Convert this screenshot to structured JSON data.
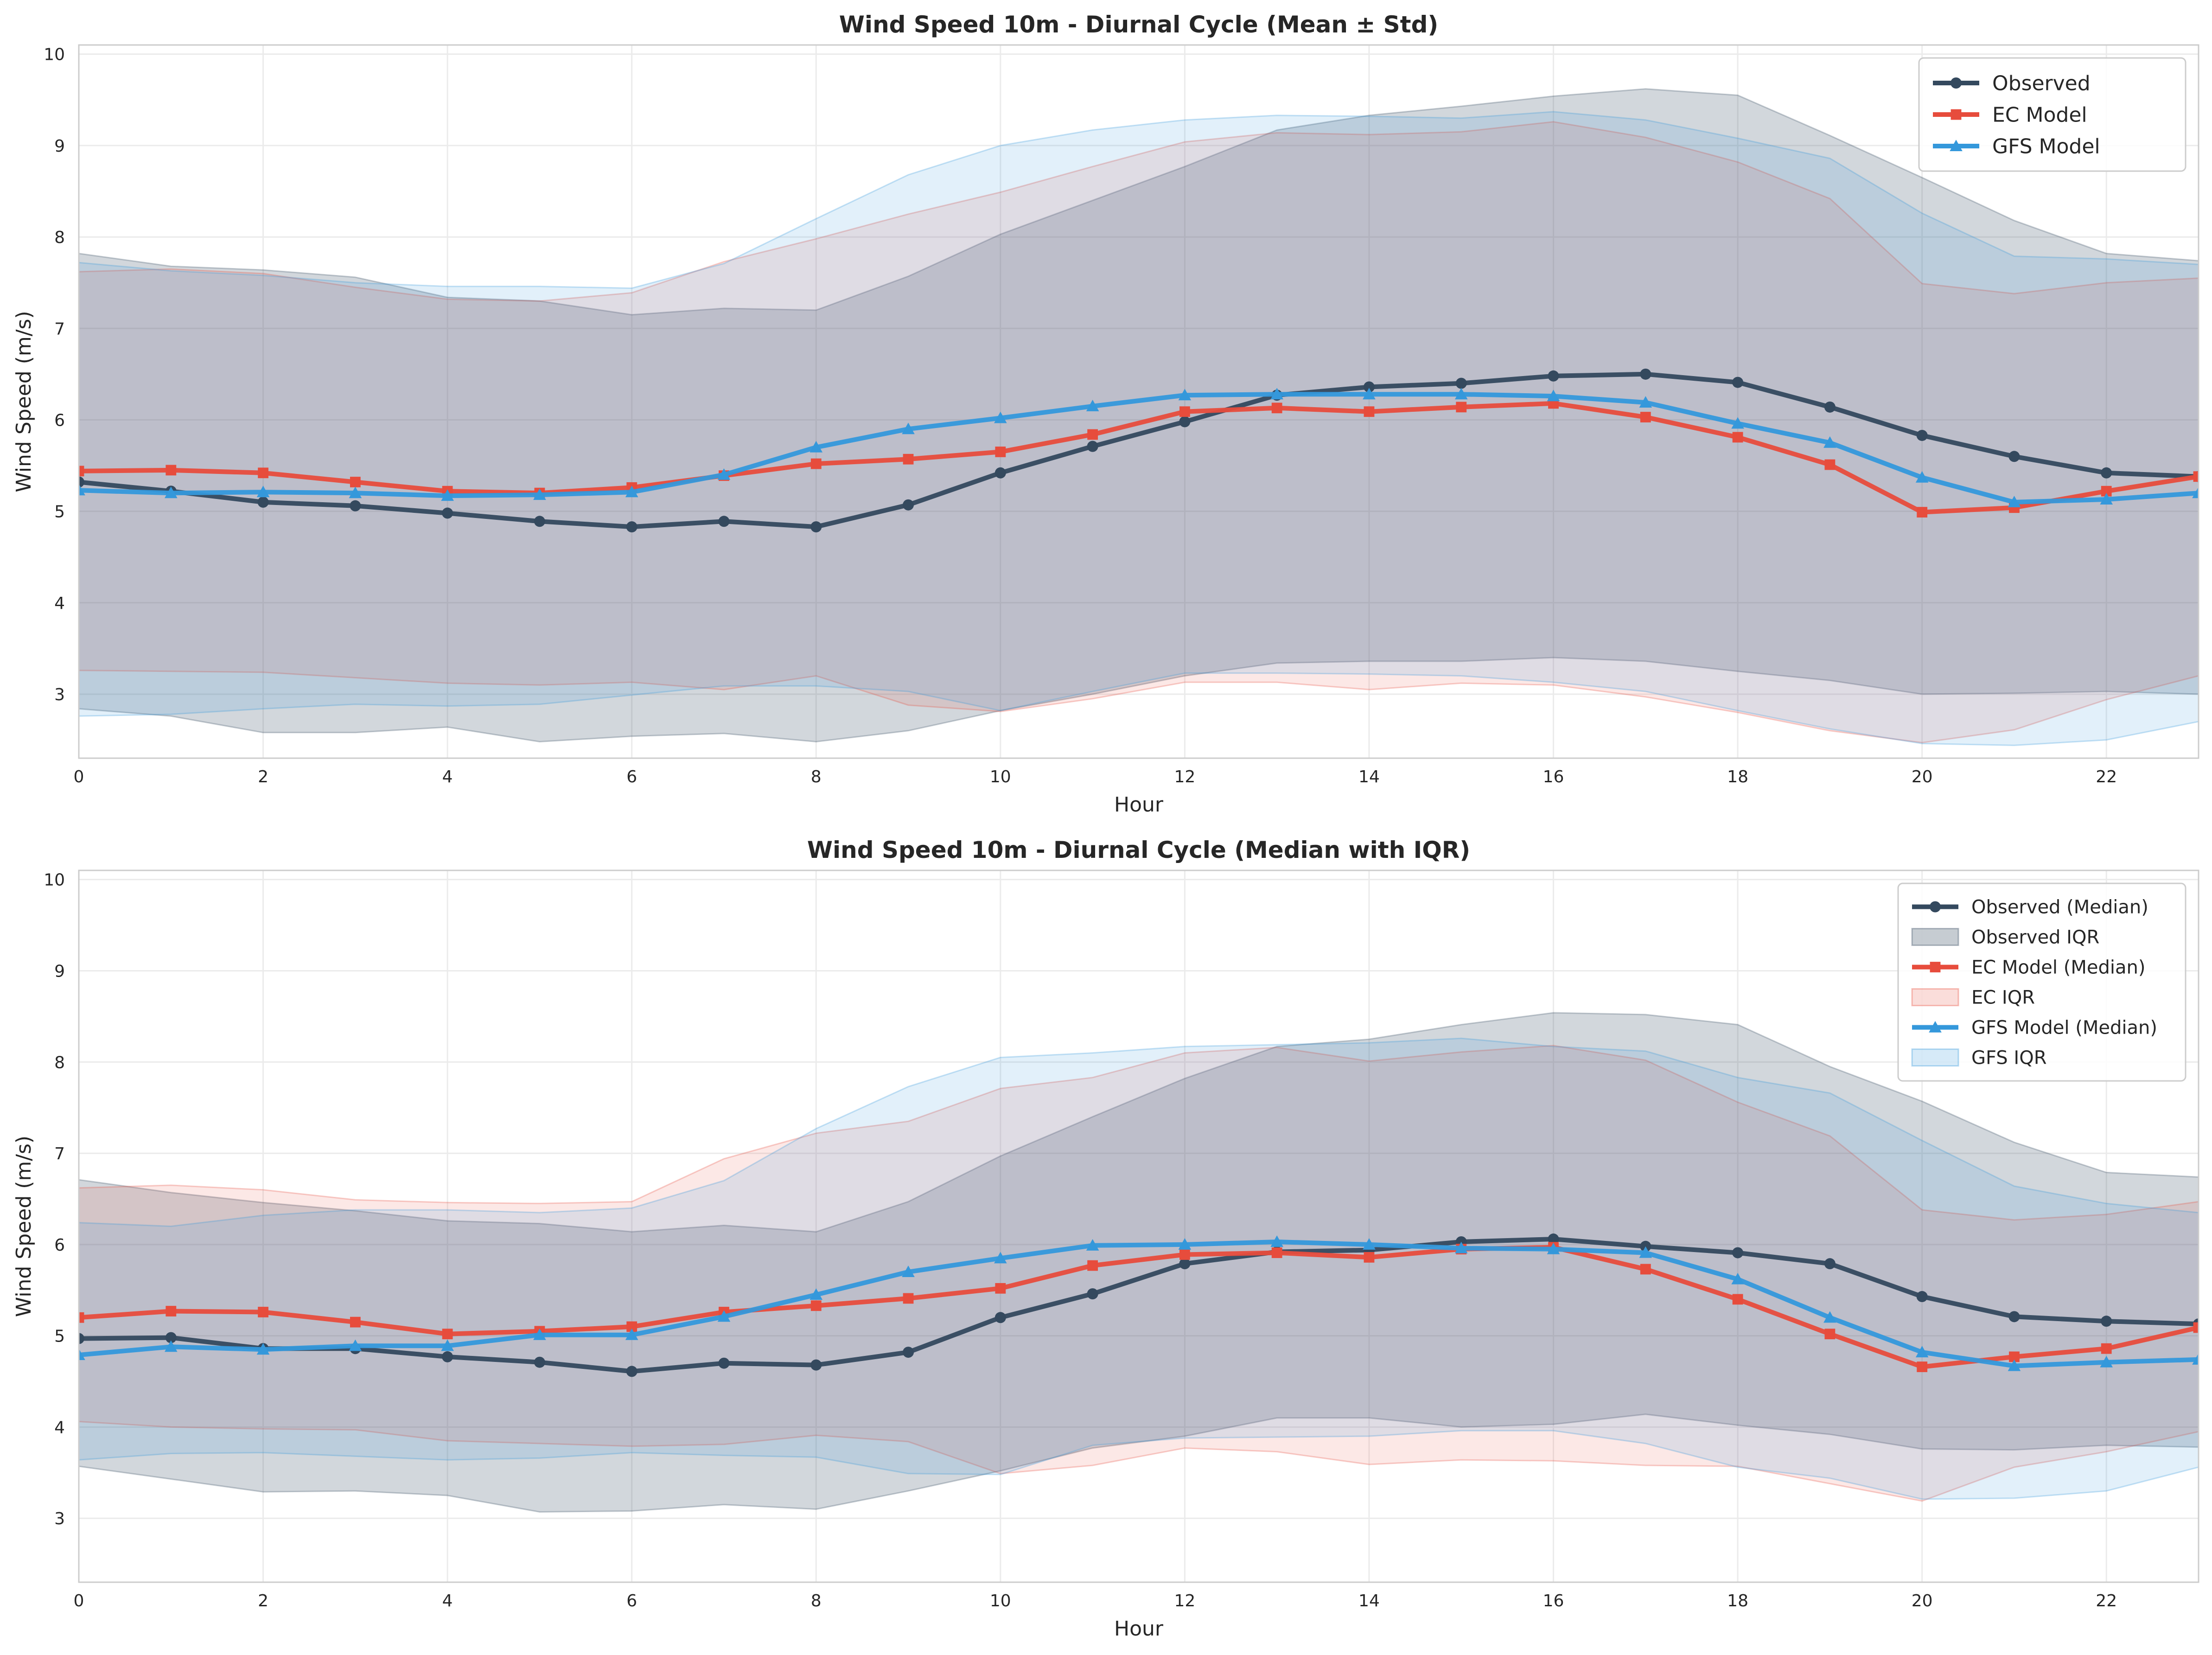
{
  "chart_data": [
    {
      "type": "line",
      "title": "Wind Speed 10m - Diurnal Cycle (Mean ± Std)",
      "xlabel": "Hour",
      "ylabel": "Wind Speed (m/s)",
      "xlim": [
        0,
        23
      ],
      "ylim": [
        2.3,
        10.1
      ],
      "xticks": [
        "0",
        "2",
        "4",
        "6",
        "8",
        "10",
        "12",
        "14",
        "16",
        "18",
        "20",
        "22"
      ],
      "yticks": [
        "3",
        "4",
        "5",
        "6",
        "7",
        "8",
        "9",
        "10"
      ],
      "grid": true,
      "legend_position": "top-right",
      "legend": [
        "Observed",
        "EC Model",
        "GFS Model"
      ],
      "x": [
        0,
        1,
        2,
        3,
        4,
        5,
        6,
        7,
        8,
        9,
        10,
        11,
        12,
        13,
        14,
        15,
        16,
        17,
        18,
        19,
        20,
        21,
        22,
        23
      ],
      "series": [
        {
          "name": "Observed",
          "color": "#34495e",
          "marker": "circle",
          "values": [
            5.32,
            5.22,
            5.1,
            5.06,
            4.98,
            4.89,
            4.83,
            4.89,
            4.83,
            5.07,
            5.42,
            5.71,
            5.98,
            6.27,
            6.36,
            6.4,
            6.48,
            6.5,
            6.41,
            6.14,
            5.83,
            5.6,
            5.42,
            5.38
          ],
          "band_low": [
            2.84,
            2.76,
            2.58,
            2.58,
            2.64,
            2.48,
            2.54,
            2.57,
            2.48,
            2.6,
            2.82,
            3.0,
            3.2,
            3.34,
            3.36,
            3.36,
            3.4,
            3.36,
            3.25,
            3.15,
            3.0,
            3.01,
            3.03,
            3.0
          ],
          "band_high": [
            7.82,
            7.68,
            7.64,
            7.56,
            7.34,
            7.3,
            7.15,
            7.22,
            7.2,
            7.57,
            8.03,
            8.4,
            8.77,
            9.17,
            9.33,
            9.43,
            9.54,
            9.62,
            9.55,
            9.11,
            8.65,
            8.18,
            7.82,
            7.74
          ]
        },
        {
          "name": "EC Model",
          "color": "#e74c3c",
          "marker": "square",
          "values": [
            5.44,
            5.45,
            5.42,
            5.32,
            5.22,
            5.2,
            5.26,
            5.39,
            5.52,
            5.57,
            5.65,
            5.84,
            6.09,
            6.13,
            6.09,
            6.14,
            6.18,
            6.03,
            5.81,
            5.51,
            4.99,
            5.04,
            5.22,
            5.38
          ],
          "band_low": [
            3.26,
            3.25,
            3.24,
            3.18,
            3.12,
            3.1,
            3.13,
            3.05,
            3.2,
            2.88,
            2.81,
            2.95,
            3.13,
            3.13,
            3.05,
            3.12,
            3.1,
            2.97,
            2.8,
            2.6,
            2.47,
            2.61,
            2.94,
            3.2
          ],
          "band_high": [
            7.62,
            7.65,
            7.6,
            7.45,
            7.32,
            7.3,
            7.39,
            7.73,
            7.98,
            8.25,
            8.49,
            8.77,
            9.04,
            9.14,
            9.12,
            9.15,
            9.26,
            9.09,
            8.82,
            8.42,
            7.49,
            7.38,
            7.5,
            7.55
          ]
        },
        {
          "name": "GFS Model",
          "color": "#3498db",
          "marker": "triangle",
          "values": [
            5.23,
            5.2,
            5.21,
            5.2,
            5.17,
            5.18,
            5.21,
            5.4,
            5.7,
            5.9,
            6.02,
            6.15,
            6.27,
            6.28,
            6.28,
            6.28,
            6.26,
            6.19,
            5.96,
            5.75,
            5.37,
            5.1,
            5.13,
            5.2
          ],
          "band_low": [
            2.76,
            2.78,
            2.84,
            2.89,
            2.87,
            2.89,
            2.99,
            3.09,
            3.09,
            3.03,
            2.82,
            3.03,
            3.23,
            3.23,
            3.22,
            3.2,
            3.13,
            3.03,
            2.82,
            2.62,
            2.46,
            2.44,
            2.5,
            2.7
          ],
          "band_high": [
            7.72,
            7.63,
            7.58,
            7.5,
            7.46,
            7.46,
            7.44,
            7.71,
            8.2,
            8.68,
            9.0,
            9.17,
            9.28,
            9.33,
            9.32,
            9.3,
            9.37,
            9.28,
            9.08,
            8.86,
            8.26,
            7.79,
            7.76,
            7.7
          ]
        }
      ]
    },
    {
      "type": "line",
      "title": "Wind Speed 10m - Diurnal Cycle (Median with IQR)",
      "xlabel": "Hour",
      "ylabel": "Wind Speed (m/s)",
      "xlim": [
        0,
        23
      ],
      "ylim": [
        2.3,
        10.1
      ],
      "xticks": [
        "0",
        "2",
        "4",
        "6",
        "8",
        "10",
        "12",
        "14",
        "16",
        "18",
        "20",
        "22"
      ],
      "yticks": [
        "3",
        "4",
        "5",
        "6",
        "7",
        "8",
        "9",
        "10"
      ],
      "grid": true,
      "legend_position": "top-right",
      "legend": [
        "Observed (Median)",
        "Observed IQR",
        "EC Model (Median)",
        "EC IQR",
        "GFS Model (Median)",
        "GFS IQR"
      ],
      "x": [
        0,
        1,
        2,
        3,
        4,
        5,
        6,
        7,
        8,
        9,
        10,
        11,
        12,
        13,
        14,
        15,
        16,
        17,
        18,
        19,
        20,
        21,
        22,
        23
      ],
      "series": [
        {
          "name": "Observed (Median)",
          "band_name": "Observed IQR",
          "color": "#34495e",
          "marker": "circle",
          "values": [
            4.97,
            4.98,
            4.86,
            4.86,
            4.77,
            4.71,
            4.61,
            4.7,
            4.68,
            4.82,
            5.2,
            5.46,
            5.79,
            5.92,
            5.94,
            6.03,
            6.06,
            5.98,
            5.91,
            5.79,
            5.43,
            5.21,
            5.16,
            5.13
          ],
          "band_low": [
            3.57,
            3.43,
            3.29,
            3.3,
            3.25,
            3.07,
            3.08,
            3.15,
            3.1,
            3.3,
            3.52,
            3.77,
            3.9,
            4.1,
            4.1,
            4.0,
            4.03,
            4.14,
            4.02,
            3.92,
            3.76,
            3.75,
            3.8,
            3.78
          ],
          "band_high": [
            6.71,
            6.57,
            6.46,
            6.37,
            6.26,
            6.23,
            6.14,
            6.21,
            6.14,
            6.47,
            6.97,
            7.4,
            7.82,
            8.17,
            8.25,
            8.41,
            8.54,
            8.52,
            8.41,
            7.95,
            7.57,
            7.12,
            6.79,
            6.74
          ]
        },
        {
          "name": "EC Model (Median)",
          "band_name": "EC IQR",
          "color": "#e74c3c",
          "marker": "square",
          "values": [
            5.2,
            5.27,
            5.26,
            5.15,
            5.02,
            5.05,
            5.1,
            5.26,
            5.33,
            5.41,
            5.52,
            5.77,
            5.89,
            5.91,
            5.86,
            5.95,
            5.97,
            5.73,
            5.4,
            5.02,
            4.66,
            4.77,
            4.86,
            5.09
          ],
          "band_low": [
            4.06,
            4.0,
            3.98,
            3.97,
            3.85,
            3.82,
            3.79,
            3.81,
            3.91,
            3.84,
            3.49,
            3.58,
            3.77,
            3.73,
            3.59,
            3.64,
            3.63,
            3.58,
            3.57,
            3.38,
            3.19,
            3.56,
            3.73,
            3.95
          ],
          "band_high": [
            6.62,
            6.65,
            6.6,
            6.49,
            6.46,
            6.45,
            6.47,
            6.94,
            7.22,
            7.35,
            7.71,
            7.83,
            8.1,
            8.16,
            8.01,
            8.11,
            8.18,
            8.02,
            7.56,
            7.19,
            6.38,
            6.27,
            6.33,
            6.47
          ]
        },
        {
          "name": "GFS Model (Median)",
          "band_name": "GFS IQR",
          "color": "#3498db",
          "marker": "triangle",
          "values": [
            4.79,
            4.88,
            4.85,
            4.89,
            4.89,
            5.01,
            5.01,
            5.21,
            5.45,
            5.7,
            5.85,
            5.99,
            6.0,
            6.03,
            6.0,
            5.96,
            5.95,
            5.91,
            5.62,
            5.2,
            4.82,
            4.67,
            4.71,
            4.74
          ],
          "band_low": [
            3.64,
            3.71,
            3.72,
            3.68,
            3.64,
            3.66,
            3.72,
            3.69,
            3.67,
            3.49,
            3.48,
            3.8,
            3.88,
            3.89,
            3.9,
            3.96,
            3.96,
            3.82,
            3.56,
            3.44,
            3.21,
            3.22,
            3.3,
            3.56
          ],
          "band_high": [
            6.24,
            6.2,
            6.32,
            6.38,
            6.38,
            6.35,
            6.4,
            6.7,
            7.27,
            7.73,
            8.05,
            8.1,
            8.17,
            8.19,
            8.21,
            8.26,
            8.17,
            8.12,
            7.83,
            7.66,
            7.14,
            6.64,
            6.45,
            6.35
          ]
        }
      ]
    }
  ]
}
